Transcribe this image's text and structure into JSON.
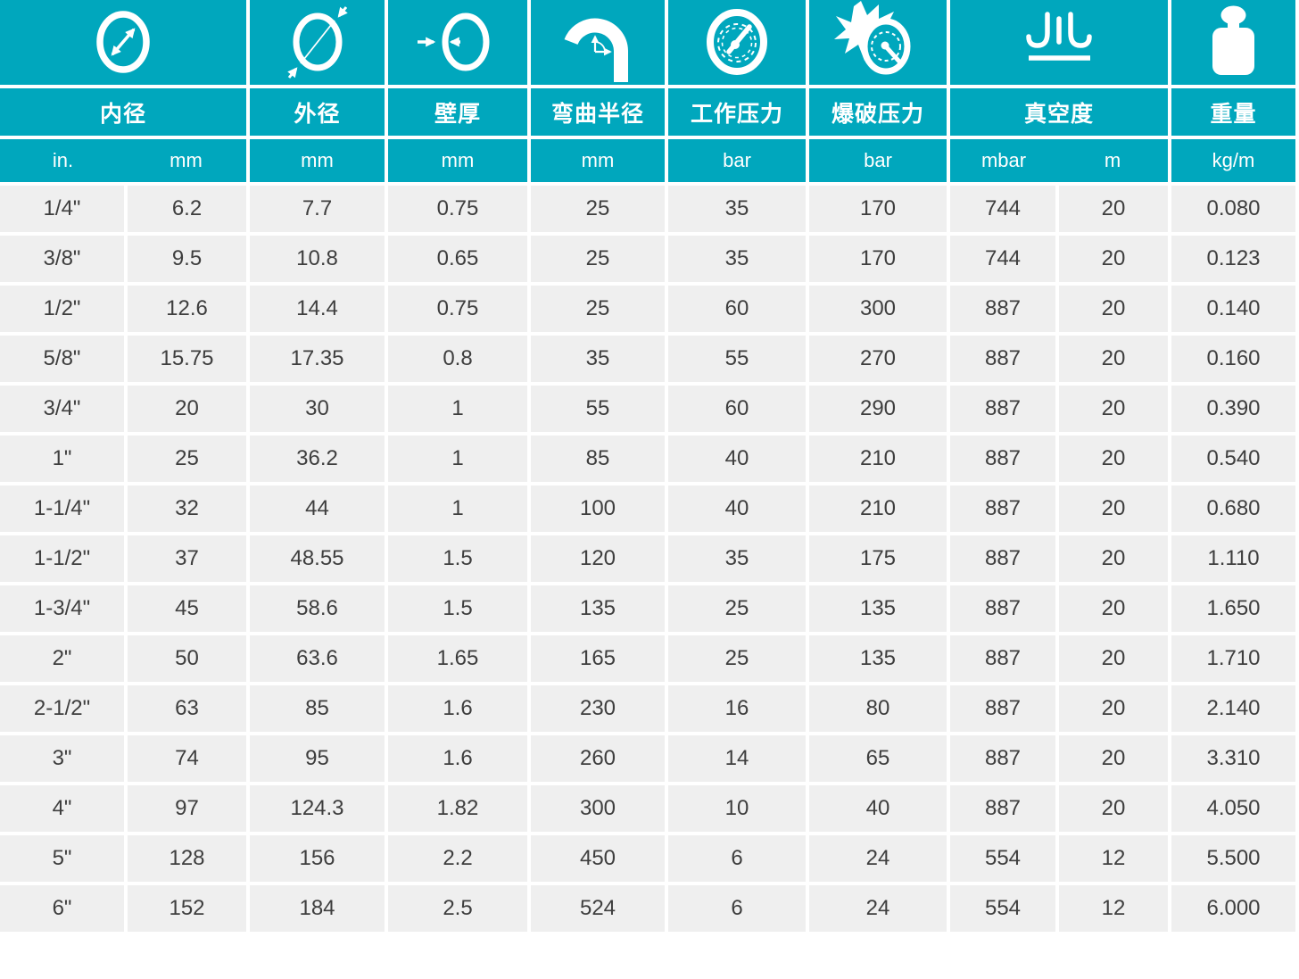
{
  "colors": {
    "header_teal": "#00a7bd",
    "row_gray": "#efefef",
    "text_dark": "#3e3e3e",
    "icon_white": "#ffffff"
  },
  "chart_data": {
    "type": "table",
    "columns": [
      {
        "key": "inner_diameter",
        "label": "内径",
        "icon": "inner-diameter-icon",
        "units": [
          "in.",
          "mm"
        ]
      },
      {
        "key": "outer_diameter",
        "label": "外径",
        "icon": "outer-diameter-icon",
        "units": [
          "mm"
        ]
      },
      {
        "key": "wall_thickness",
        "label": "壁厚",
        "icon": "wall-thickness-icon",
        "units": [
          "mm"
        ]
      },
      {
        "key": "bend_radius",
        "label": "弯曲半径",
        "icon": "bend-radius-icon",
        "units": [
          "mm"
        ]
      },
      {
        "key": "working_pressure",
        "label": "工作压力",
        "icon": "working-pressure-gauge-icon",
        "units": [
          "bar"
        ]
      },
      {
        "key": "burst_pressure",
        "label": "爆破压力",
        "icon": "burst-pressure-icon",
        "units": [
          "bar"
        ]
      },
      {
        "key": "vacuum",
        "label": "真空度",
        "icon": "vacuum-icon",
        "units": [
          "mbar",
          "m"
        ]
      },
      {
        "key": "weight",
        "label": "重量",
        "icon": "weight-icon",
        "units": [
          "kg/m"
        ]
      }
    ],
    "rows": [
      [
        "1/4\"",
        "6.2",
        "7.7",
        "0.75",
        "25",
        "35",
        "170",
        "744",
        "20",
        "0.080"
      ],
      [
        "3/8\"",
        "9.5",
        "10.8",
        "0.65",
        "25",
        "35",
        "170",
        "744",
        "20",
        "0.123"
      ],
      [
        "1/2\"",
        "12.6",
        "14.4",
        "0.75",
        "25",
        "60",
        "300",
        "887",
        "20",
        "0.140"
      ],
      [
        "5/8\"",
        "15.75",
        "17.35",
        "0.8",
        "35",
        "55",
        "270",
        "887",
        "20",
        "0.160"
      ],
      [
        "3/4\"",
        "20",
        "30",
        "1",
        "55",
        "60",
        "290",
        "887",
        "20",
        "0.390"
      ],
      [
        "1\"",
        "25",
        "36.2",
        "1",
        "85",
        "40",
        "210",
        "887",
        "20",
        "0.540"
      ],
      [
        "1-1/4\"",
        "32",
        "44",
        "1",
        "100",
        "40",
        "210",
        "887",
        "20",
        "0.680"
      ],
      [
        "1-1/2\"",
        "37",
        "48.55",
        "1.5",
        "120",
        "35",
        "175",
        "887",
        "20",
        "1.110"
      ],
      [
        "1-3/4\"",
        "45",
        "58.6",
        "1.5",
        "135",
        "25",
        "135",
        "887",
        "20",
        "1.650"
      ],
      [
        "2\"",
        "50",
        "63.6",
        "1.65",
        "165",
        "25",
        "135",
        "887",
        "20",
        "1.710"
      ],
      [
        "2-1/2\"",
        "63",
        "85",
        "1.6",
        "230",
        "16",
        "80",
        "887",
        "20",
        "2.140"
      ],
      [
        "3\"",
        "74",
        "95",
        "1.6",
        "260",
        "14",
        "65",
        "887",
        "20",
        "3.310"
      ],
      [
        "4\"",
        "97",
        "124.3",
        "1.82",
        "300",
        "10",
        "40",
        "887",
        "20",
        "4.050"
      ],
      [
        "5\"",
        "128",
        "156",
        "2.2",
        "450",
        "6",
        "24",
        "554",
        "12",
        "5.500"
      ],
      [
        "6\"",
        "152",
        "184",
        "2.5",
        "524",
        "6",
        "24",
        "554",
        "12",
        "6.000"
      ]
    ]
  }
}
